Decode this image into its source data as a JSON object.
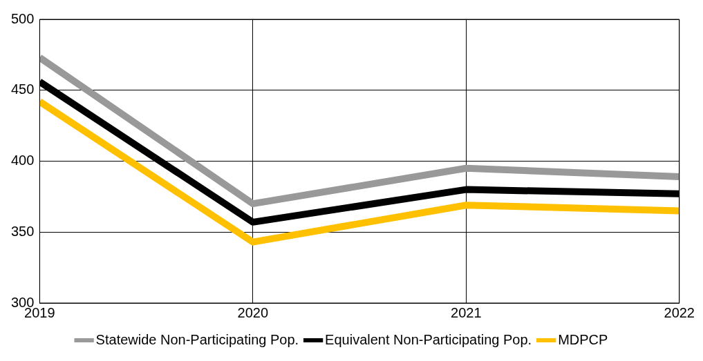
{
  "chart_data": {
    "type": "line",
    "x": [
      2019,
      2020,
      2021,
      2022
    ],
    "xlim": [
      2019,
      2022
    ],
    "xticks": [
      2019,
      2020,
      2021,
      2022
    ],
    "ylim": [
      300,
      500
    ],
    "yticks": [
      300,
      350,
      400,
      450,
      500
    ],
    "grid": true,
    "legend": "bottom",
    "marker": "none",
    "line_style": "solid",
    "series": [
      {
        "name": "Statewide Non-Participating Pop.",
        "color": "#999999",
        "values": [
          473,
          370,
          395,
          389
        ]
      },
      {
        "name": "Equivalent Non-Participating Pop.",
        "color": "#000000",
        "values": [
          456,
          357,
          380,
          377
        ]
      },
      {
        "name": "MDPCP",
        "color": "#ffc000",
        "values": [
          442,
          343,
          369,
          365
        ]
      }
    ]
  }
}
